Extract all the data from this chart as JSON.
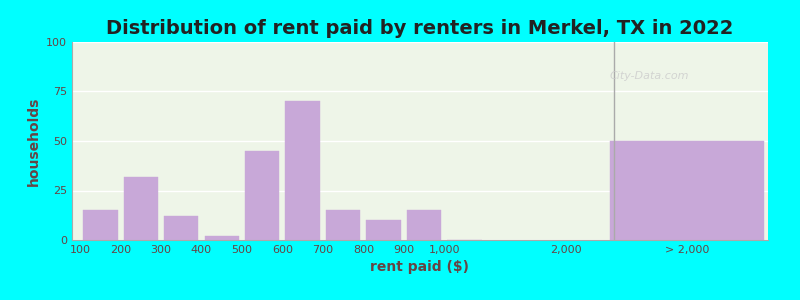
{
  "title": "Distribution of rent paid by renters in Merkel, TX in 2022",
  "xlabel": "rent paid ($)",
  "ylabel": "households",
  "background_outer": "#00FFFF",
  "plot_bg_color": "#eef5e8",
  "bar_color": "#c8a8d8",
  "ylim": [
    0,
    100
  ],
  "yticks": [
    0,
    25,
    50,
    75,
    100
  ],
  "hist_values": [
    15,
    32,
    12,
    2,
    45,
    70,
    15,
    10,
    15,
    0
  ],
  "gt2000_value": 50,
  "hist_tick_labels": [
    "100",
    "200",
    "300",
    "400",
    "500",
    "600",
    "700",
    "800",
    "900",
    "1,000"
  ],
  "title_fontsize": 14,
  "axis_label_fontsize": 10,
  "tick_fontsize": 8
}
